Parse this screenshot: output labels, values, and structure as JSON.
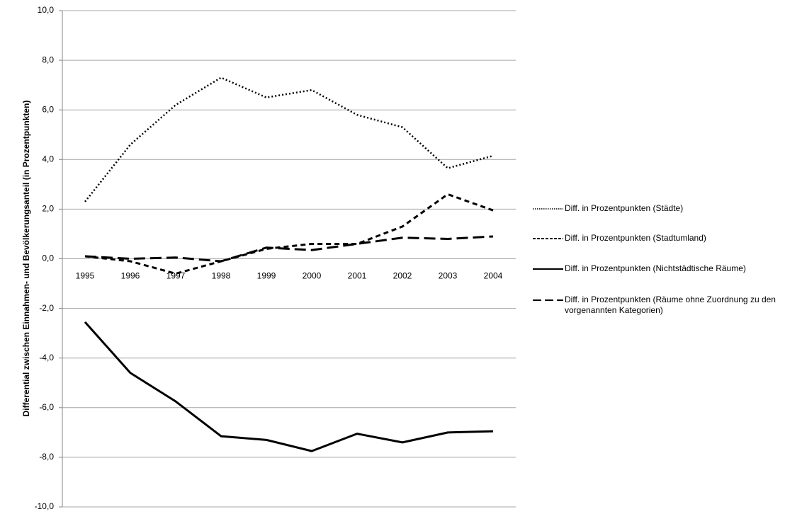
{
  "chart_data": {
    "type": "line",
    "y_label": "Differential zwischen Einnahmen- und Bevölkerungsanteil  (in Prozentpunkten)",
    "categories": [
      "1995",
      "1996",
      "1997",
      "1998",
      "1999",
      "2000",
      "2001",
      "2002",
      "2003",
      "2004"
    ],
    "series": [
      {
        "name": "Diff. in Prozentpunkten (Städte)",
        "color": "#000000",
        "style": "dotted",
        "values": [
          2.3,
          4.6,
          6.2,
          7.3,
          6.5,
          6.8,
          5.8,
          5.3,
          3.65,
          4.15
        ]
      },
      {
        "name": "Diff. in Prozentpunkten (Stadtumland)",
        "color": "#000000",
        "style": "dashed",
        "values": [
          0.1,
          -0.1,
          -0.6,
          -0.1,
          0.4,
          0.6,
          0.6,
          1.3,
          2.6,
          1.95
        ]
      },
      {
        "name": "Diff. in Prozentpunkten (Nichtstädtische Räume)",
        "color": "#000000",
        "style": "solid",
        "values": [
          -2.55,
          -4.6,
          -5.75,
          -7.15,
          -7.3,
          -7.75,
          -7.05,
          -7.4,
          -7.0,
          -6.95
        ]
      },
      {
        "name": "Diff. in Prozentpunkten (Räume  ohne Zuordnung zu den vorgenannten Kategorien)",
        "color": "#000000",
        "style": "longdash",
        "values": [
          0.1,
          0.0,
          0.05,
          -0.1,
          0.45,
          0.35,
          0.6,
          0.85,
          0.8,
          0.9
        ]
      }
    ],
    "ylim": [
      -10,
      10
    ],
    "yticks": [
      {
        "value": -10,
        "label": "-10,0"
      },
      {
        "value": -8,
        "label": "-8,0"
      },
      {
        "value": -6,
        "label": "-6,0"
      },
      {
        "value": -4,
        "label": "-4,0"
      },
      {
        "value": -2,
        "label": "-2,0"
      },
      {
        "value": 0,
        "label": "0,0"
      },
      {
        "value": 2,
        "label": "2,0"
      },
      {
        "value": 4,
        "label": "4,0"
      },
      {
        "value": 6,
        "label": "6,0"
      },
      {
        "value": 8,
        "label": "8,0"
      },
      {
        "value": 10,
        "label": "10,0"
      }
    ],
    "grid": true,
    "legend": "right"
  }
}
